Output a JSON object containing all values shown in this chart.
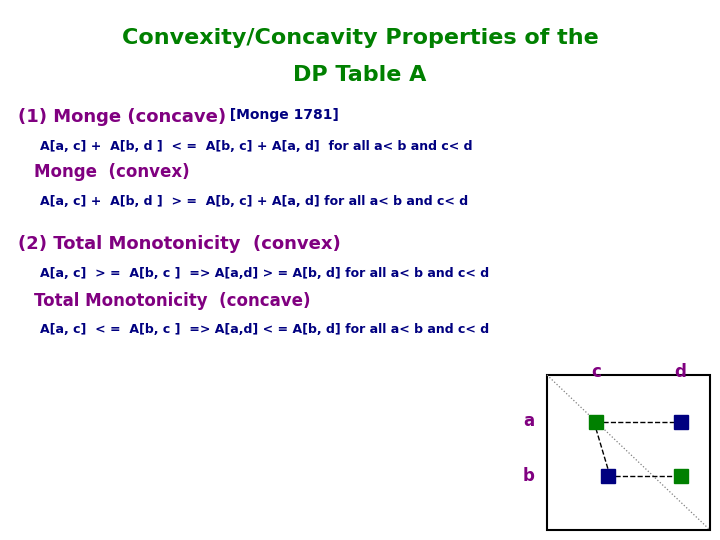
{
  "title_line1": "Convexity/Concavity Properties of the",
  "title_line2": "DP Table A",
  "title_color": "#008000",
  "bg_color": "#ffffff",
  "section1_label": "(1) Monge (concave)",
  "section1_ref": "  [Monge 1781]",
  "section1_color": "#800080",
  "section1_ref_color": "#000080",
  "line1a_text": "A[a, c] +  A[b, d ]  < =  A[b, c] + A[a, d]  for all a< b and c< d",
  "line1a_color": "#000080",
  "subsection1_label": "Monge  (convex)",
  "subsection1_color": "#800080",
  "line1b_text": "A[a, c] +  A[b, d ]  > =  A[b, c] + A[a, d] for all a< b and c< d",
  "line1b_color": "#000080",
  "section2_label": "(2) Total Monotonicity  (convex)",
  "section2_color": "#800080",
  "line2a_text": "A[a, c]  > =  A[b, c ]  => A[a,d] > = A[b, d] for all a< b and c< d",
  "line2a_color": "#000080",
  "subsection2_label": "Total Monotonicity  (concave)",
  "subsection2_color": "#800080",
  "line2b_text": "A[a, c]  < =  A[b, c ]  => A[a,d] < = A[b, d] for all a< b and c< d",
  "line2b_color": "#000080",
  "label_color": "#800080",
  "font_size_title": 16,
  "font_size_section": 13,
  "font_size_line": 9,
  "font_size_subsection": 12,
  "font_size_ref": 10,
  "font_size_diagram_label": 12
}
